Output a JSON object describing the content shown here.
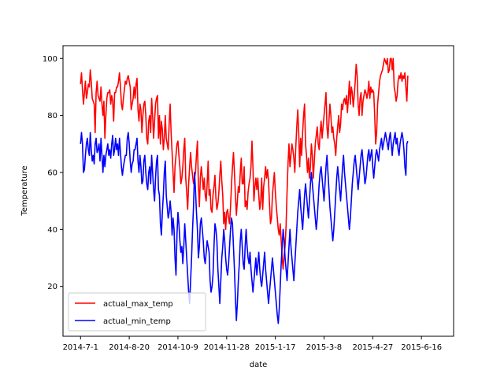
{
  "chart_data": {
    "type": "line",
    "title": "",
    "xlabel": "date",
    "ylabel": "Temperature",
    "x_start": "2014-7-1",
    "x_end": "2015-6-30",
    "xlim": [
      "2014-6-13",
      "2015-7-19"
    ],
    "ylim": [
      2.5,
      104.5
    ],
    "yticks": [
      20,
      40,
      60,
      80,
      100
    ],
    "xticks": [
      "2014-7-1",
      "2014-8-20",
      "2014-10-9",
      "2014-11-28",
      "2015-1-17",
      "2015-3-8",
      "2015-4-27",
      "2015-6-16"
    ],
    "grid": false,
    "legend_position": "lower-left",
    "series": [
      {
        "name": "actual_max_temp",
        "color": "#ff0000",
        "values": [
          91,
          95,
          89,
          84,
          88,
          92,
          86,
          88,
          91,
          90,
          96,
          92,
          86,
          85,
          84,
          74,
          88,
          92,
          87,
          86,
          85,
          90,
          84,
          80,
          85,
          72,
          80,
          86,
          88,
          88,
          89,
          84,
          87,
          85,
          78,
          88,
          88,
          90,
          90,
          92,
          95,
          90,
          84,
          82,
          86,
          89,
          92,
          91,
          93,
          94,
          92,
          90,
          82,
          84,
          86,
          90,
          86,
          91,
          93,
          82,
          78,
          84,
          82,
          74,
          80,
          84,
          85,
          80,
          72,
          70,
          78,
          80,
          74,
          86,
          80,
          72,
          78,
          84,
          86,
          87,
          72,
          80,
          70,
          78,
          75,
          68,
          72,
          80,
          72,
          70,
          68,
          77,
          84,
          74,
          67,
          60,
          53,
          62,
          66,
          70,
          71,
          66,
          62,
          56,
          58,
          62,
          68,
          72,
          58,
          53,
          47,
          56,
          62,
          67,
          62,
          59,
          56,
          58,
          60,
          66,
          71,
          56,
          48,
          58,
          62,
          58,
          54,
          58,
          52,
          50,
          56,
          64,
          52,
          54,
          47,
          46,
          52,
          55,
          59,
          51,
          47,
          49,
          53,
          59,
          64,
          57,
          52,
          42,
          46,
          40,
          46,
          47,
          44,
          42,
          48,
          56,
          62,
          67,
          60,
          52,
          45,
          50,
          55,
          53,
          60,
          65,
          56,
          56,
          62,
          48,
          50,
          47,
          53,
          56,
          58,
          62,
          71,
          62,
          50,
          55,
          58,
          54,
          58,
          52,
          47,
          50,
          58,
          47,
          55,
          58,
          62,
          58,
          61,
          57,
          49,
          42,
          44,
          52,
          56,
          60,
          53,
          48,
          44,
          40,
          38,
          42,
          36,
          30,
          26,
          31,
          34,
          41,
          53,
          63,
          70,
          62,
          66,
          70,
          68,
          65,
          60,
          69,
          76,
          82,
          74,
          62,
          72,
          66,
          74,
          80,
          84,
          70,
          66,
          60,
          65,
          58,
          62,
          70,
          66,
          58,
          64,
          70,
          73,
          76,
          70,
          68,
          74,
          78,
          72,
          76,
          80,
          84,
          88,
          76,
          72,
          78,
          84,
          80,
          74,
          76,
          72,
          70,
          66,
          72,
          76,
          80,
          74,
          77,
          84,
          82,
          85,
          86,
          84,
          87,
          81,
          86,
          92,
          84,
          90,
          88,
          83,
          87,
          92,
          98,
          94,
          84,
          80,
          86,
          88,
          80,
          85,
          87,
          89,
          88,
          86,
          88,
          92,
          86,
          90,
          88,
          89,
          88,
          80,
          70,
          74,
          84,
          88,
          92,
          94,
          95,
          96,
          98,
          100,
          99,
          98,
          100,
          95,
          96,
          100,
          100,
          96,
          100,
          90,
          88,
          85,
          87,
          92,
          94,
          93,
          95,
          92,
          94,
          93,
          95,
          90,
          85,
          94
        ]
      },
      {
        "name": "actual_min_temp",
        "color": "#0000ff",
        "values": [
          70,
          74,
          70,
          60,
          61,
          66,
          70,
          72,
          68,
          66,
          74,
          68,
          64,
          66,
          63,
          70,
          72,
          67,
          68,
          70,
          64,
          72,
          66,
          60,
          66,
          62,
          66,
          68,
          70,
          66,
          68,
          65,
          70,
          73,
          66,
          68,
          72,
          68,
          70,
          66,
          72,
          67,
          62,
          59,
          62,
          64,
          66,
          66,
          72,
          74,
          70,
          64,
          60,
          63,
          64,
          68,
          68,
          70,
          72,
          64,
          60,
          66,
          62,
          56,
          57,
          64,
          66,
          60,
          56,
          54,
          60,
          62,
          56,
          66,
          60,
          54,
          50,
          58,
          64,
          66,
          54,
          52,
          42,
          38,
          46,
          52,
          60,
          64,
          52,
          48,
          44,
          46,
          50,
          46,
          38,
          44,
          40,
          30,
          24,
          38,
          46,
          42,
          36,
          32,
          34,
          28,
          34,
          42,
          36,
          30,
          24,
          18,
          14,
          22,
          30,
          40,
          48,
          60,
          54,
          46,
          40,
          30,
          34,
          42,
          44,
          40,
          36,
          30,
          28,
          32,
          36,
          34,
          32,
          22,
          18,
          20,
          24,
          34,
          42,
          40,
          36,
          26,
          20,
          14,
          22,
          30,
          34,
          40,
          36,
          30,
          26,
          24,
          28,
          34,
          40,
          44,
          42,
          34,
          26,
          16,
          8,
          14,
          22,
          28,
          36,
          40,
          34,
          28,
          26,
          34,
          40,
          34,
          30,
          28,
          32,
          26,
          22,
          18,
          22,
          26,
          30,
          24,
          28,
          32,
          26,
          22,
          20,
          24,
          28,
          32,
          26,
          22,
          18,
          14,
          18,
          22,
          26,
          30,
          26,
          22,
          18,
          14,
          10,
          7,
          12,
          20,
          28,
          34,
          40,
          36,
          30,
          26,
          22,
          28,
          34,
          40,
          34,
          30,
          26,
          22,
          28,
          34,
          40,
          46,
          50,
          54,
          48,
          44,
          40,
          46,
          52,
          56,
          52,
          48,
          44,
          50,
          56,
          60,
          56,
          52,
          48,
          44,
          40,
          44,
          50,
          56,
          60,
          62,
          58,
          54,
          50,
          56,
          62,
          66,
          60,
          54,
          48,
          44,
          40,
          36,
          40,
          46,
          52,
          58,
          62,
          58,
          54,
          50,
          56,
          62,
          66,
          60,
          56,
          52,
          48,
          44,
          40,
          44,
          50,
          56,
          60,
          64,
          66,
          62,
          58,
          54,
          58,
          62,
          66,
          68,
          64,
          60,
          56,
          58,
          62,
          66,
          68,
          64,
          66,
          68,
          62,
          58,
          62,
          66,
          68,
          66,
          64,
          68,
          70,
          72,
          68,
          70,
          72,
          74,
          72,
          70,
          68,
          72,
          74,
          70,
          66,
          70,
          72,
          74,
          70,
          72,
          68,
          66,
          70,
          72,
          74,
          72,
          68,
          62,
          59,
          70,
          71
        ]
      }
    ]
  }
}
